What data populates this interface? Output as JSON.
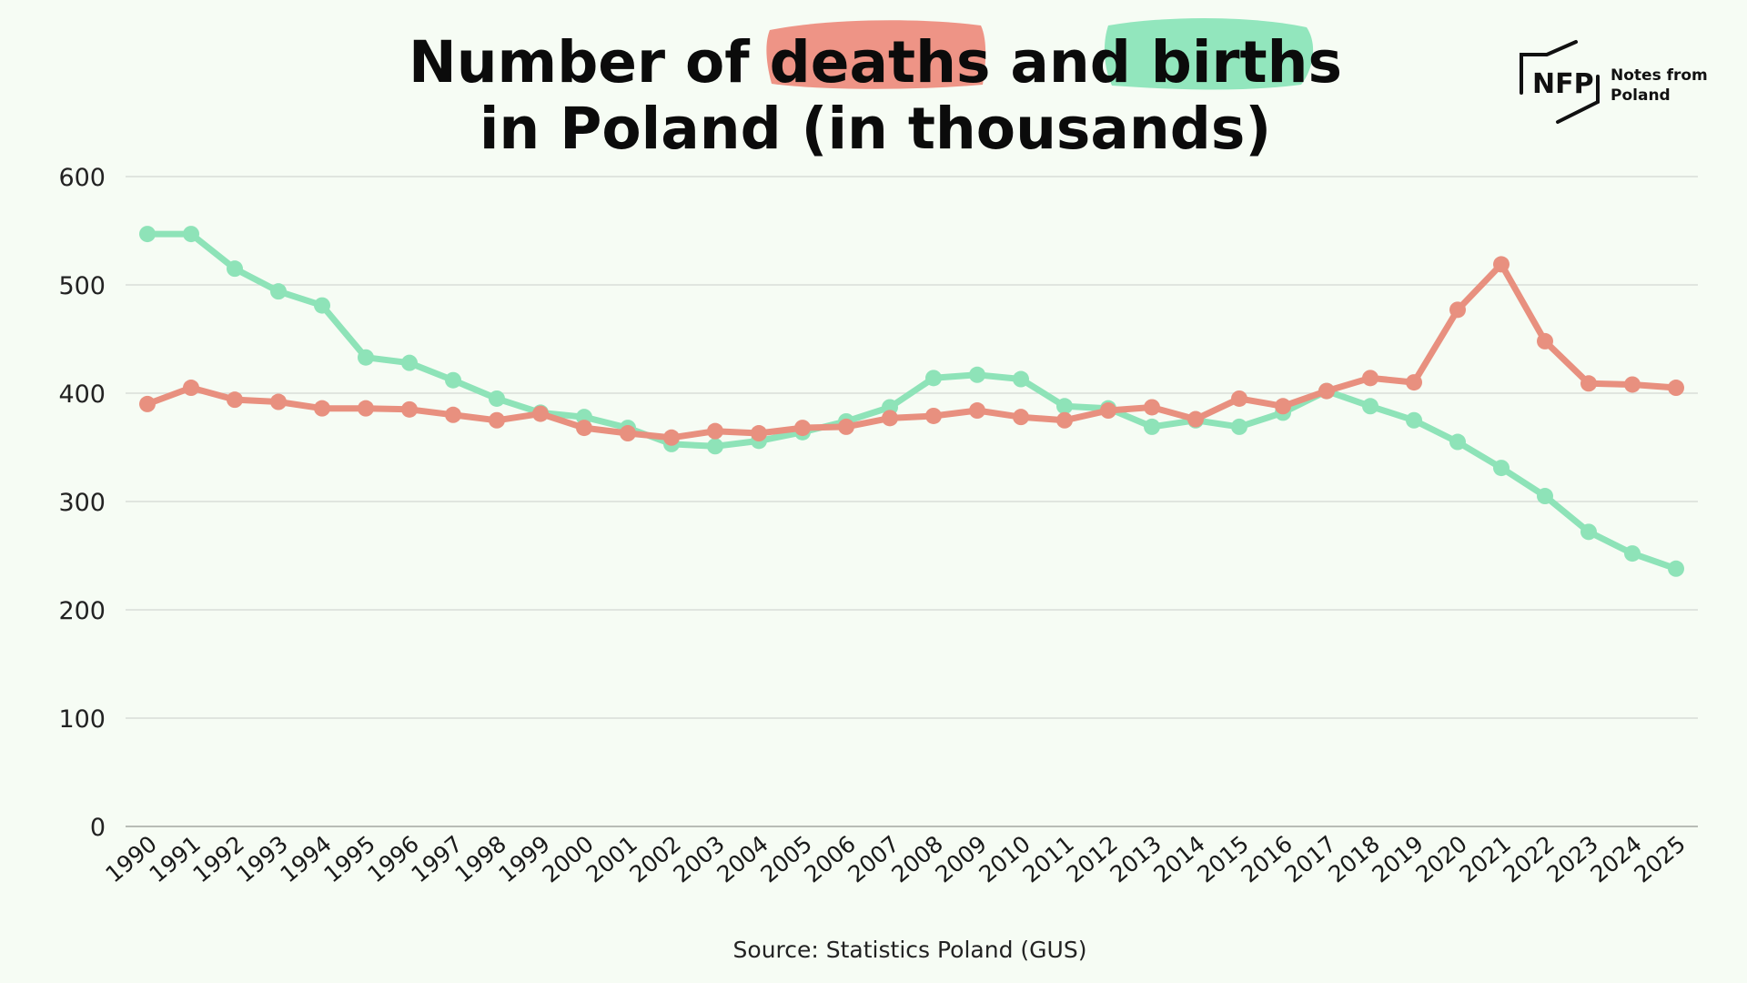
{
  "title_line1": [
    "Number of ",
    "deaths",
    " and ",
    "births"
  ],
  "title_line2": "in Poland (in thousands)",
  "source": "Source: Statistics Poland (GUS)",
  "logo": {
    "mark": "NFP",
    "line1": "Notes from",
    "line2": "Poland"
  },
  "colors": {
    "background": "#f6fcf4",
    "deaths": "#e8907f",
    "births": "#8ee3b8",
    "deaths_highlight": "#ee9486",
    "births_highlight": "#92e6bd",
    "grid": "#d9ddd8",
    "axis": "#b8bcb6"
  },
  "chart_data": {
    "type": "line",
    "title": "Number of deaths and births in Poland (in thousands)",
    "xlabel": "",
    "ylabel": "",
    "ylim": [
      0,
      600
    ],
    "yticks": [
      0,
      100,
      200,
      300,
      400,
      500,
      600
    ],
    "grid": true,
    "legend": "none (series identified by highlighted words in title)",
    "categories": [
      "1990",
      "1991",
      "1992",
      "1993",
      "1994",
      "1995",
      "1996",
      "1997",
      "1998",
      "1999",
      "2000",
      "2001",
      "2002",
      "2003",
      "2004",
      "2005",
      "2006",
      "2007",
      "2008",
      "2009",
      "2010",
      "2011",
      "2012",
      "2013",
      "2014",
      "2015",
      "2016",
      "2017",
      "2018",
      "2019",
      "2020",
      "2021",
      "2022",
      "2023",
      "2024",
      "2025"
    ],
    "series": [
      {
        "name": "births",
        "color": "#8ee3b8",
        "values": [
          547,
          547,
          515,
          494,
          481,
          433,
          428,
          412,
          395,
          382,
          378,
          368,
          353,
          351,
          356,
          364,
          374,
          387,
          414,
          417,
          413,
          388,
          386,
          369,
          375,
          369,
          382,
          402,
          388,
          375,
          355,
          331,
          305,
          272,
          252,
          238
        ]
      },
      {
        "name": "deaths",
        "color": "#e8907f",
        "values": [
          390,
          405,
          394,
          392,
          386,
          386,
          385,
          380,
          375,
          381,
          368,
          363,
          359,
          365,
          363,
          368,
          369,
          377,
          379,
          384,
          378,
          375,
          384,
          387,
          376,
          395,
          388,
          402,
          414,
          410,
          477,
          519,
          448,
          409,
          408,
          405
        ]
      }
    ]
  }
}
